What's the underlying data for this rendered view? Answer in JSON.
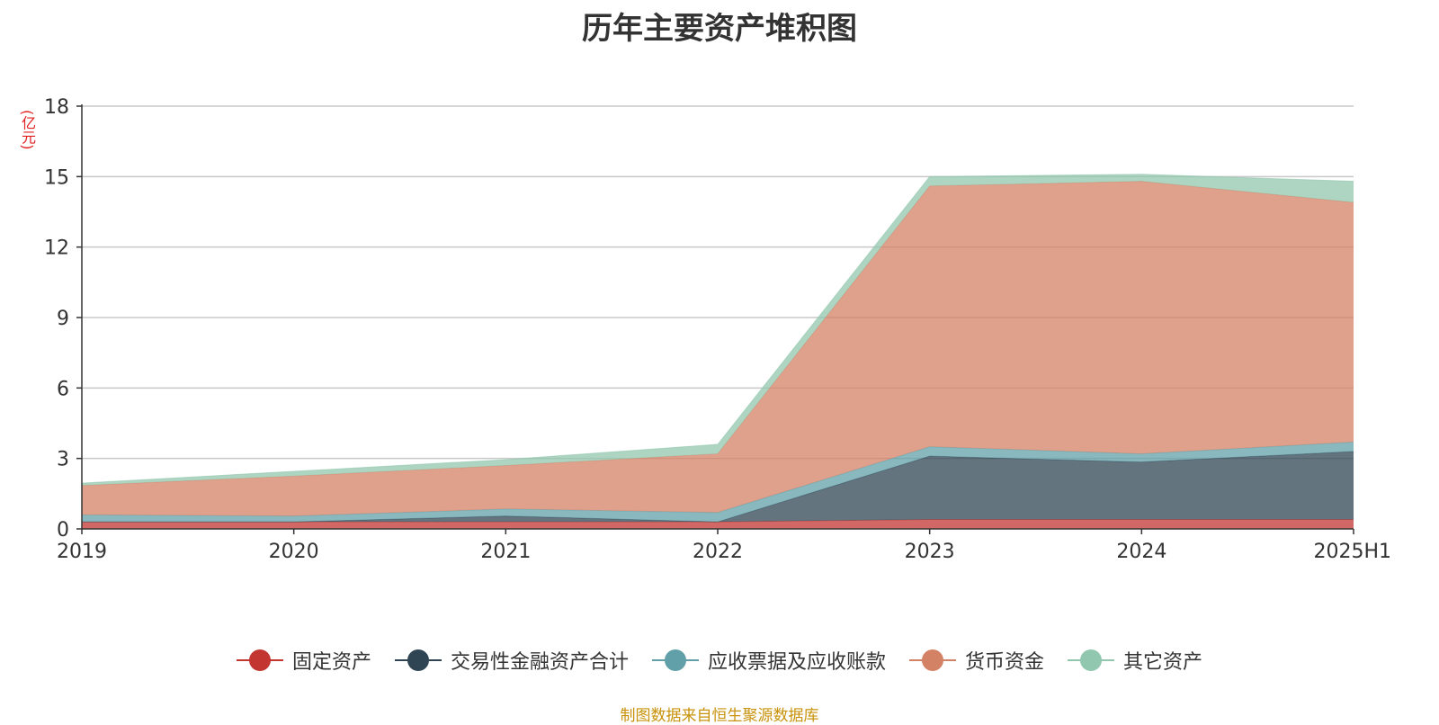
{
  "chart_data": {
    "type": "area",
    "stacked": true,
    "title": "历年主要资产堆积图",
    "unit_label": "(亿元)",
    "source": "制图数据来自恒生聚源数据库",
    "categories": [
      "2019",
      "2020",
      "2021",
      "2022",
      "2023",
      "2024",
      "2025H1"
    ],
    "ylim": [
      0,
      18
    ],
    "yticks": [
      "0",
      "3",
      "6",
      "9",
      "12",
      "15",
      "18"
    ],
    "grid": true,
    "legend_position": "bottom",
    "series": [
      {
        "name": "固定资产",
        "color": "#c23531",
        "values": [
          0.3,
          0.3,
          0.3,
          0.3,
          0.4,
          0.4,
          0.4
        ]
      },
      {
        "name": "交易性金融资产合计",
        "color": "#2f4554",
        "values": [
          0.0,
          0.0,
          0.25,
          0.0,
          2.7,
          2.45,
          2.9
        ]
      },
      {
        "name": "应收票据及应收账款",
        "color": "#61a0a8",
        "values": [
          0.3,
          0.25,
          0.3,
          0.4,
          0.4,
          0.35,
          0.4
        ]
      },
      {
        "name": "货币资金",
        "color": "#d48265",
        "values": [
          1.25,
          1.7,
          1.85,
          2.5,
          11.1,
          11.6,
          10.2
        ]
      },
      {
        "name": "其它资产",
        "color": "#91c7ae",
        "values": [
          0.1,
          0.2,
          0.25,
          0.4,
          0.4,
          0.3,
          0.9
        ]
      }
    ]
  }
}
